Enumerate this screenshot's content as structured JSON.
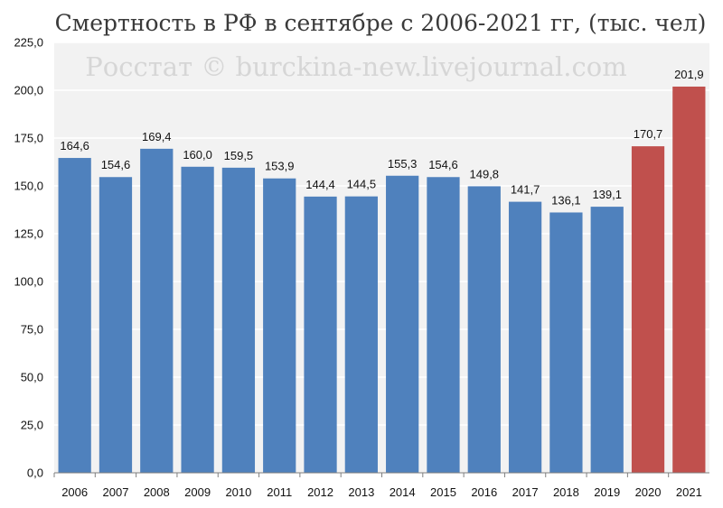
{
  "chart_data": {
    "type": "bar",
    "title": "Смертность в РФ в сентябре с 2006-2021 гг, (тыс. чел)",
    "watermark": "Росстат © burckina-new.livejournal.com",
    "categories": [
      "2006",
      "2007",
      "2008",
      "2009",
      "2010",
      "2011",
      "2012",
      "2013",
      "2014",
      "2015",
      "2016",
      "2017",
      "2018",
      "2019",
      "2020",
      "2021"
    ],
    "values": [
      164.6,
      154.6,
      169.4,
      160.0,
      159.5,
      153.9,
      144.4,
      144.5,
      155.3,
      154.6,
      149.8,
      141.7,
      136.1,
      139.1,
      170.7,
      201.9
    ],
    "value_labels": [
      "164,6",
      "154,6",
      "169,4",
      "160,0",
      "159,5",
      "153,9",
      "144,4",
      "144,5",
      "155,3",
      "154,6",
      "149,8",
      "141,7",
      "136,1",
      "139,1",
      "170,7",
      "201,9"
    ],
    "bar_colors": [
      "#4f81bd",
      "#4f81bd",
      "#4f81bd",
      "#4f81bd",
      "#4f81bd",
      "#4f81bd",
      "#4f81bd",
      "#4f81bd",
      "#4f81bd",
      "#4f81bd",
      "#4f81bd",
      "#4f81bd",
      "#4f81bd",
      "#4f81bd",
      "#c0504d",
      "#c0504d"
    ],
    "y_ticks": [
      0,
      25,
      50,
      75,
      100,
      125,
      150,
      175,
      200,
      225
    ],
    "y_tick_labels": [
      "0,0",
      "25,0",
      "50,0",
      "75,0",
      "100,0",
      "125,0",
      "150,0",
      "175,0",
      "200,0",
      "225,0"
    ],
    "ylim": [
      0,
      225
    ],
    "grid": true,
    "plot_background": "#f2f2f2",
    "grid_color": "#ffffff",
    "xlabel": "",
    "ylabel": ""
  }
}
